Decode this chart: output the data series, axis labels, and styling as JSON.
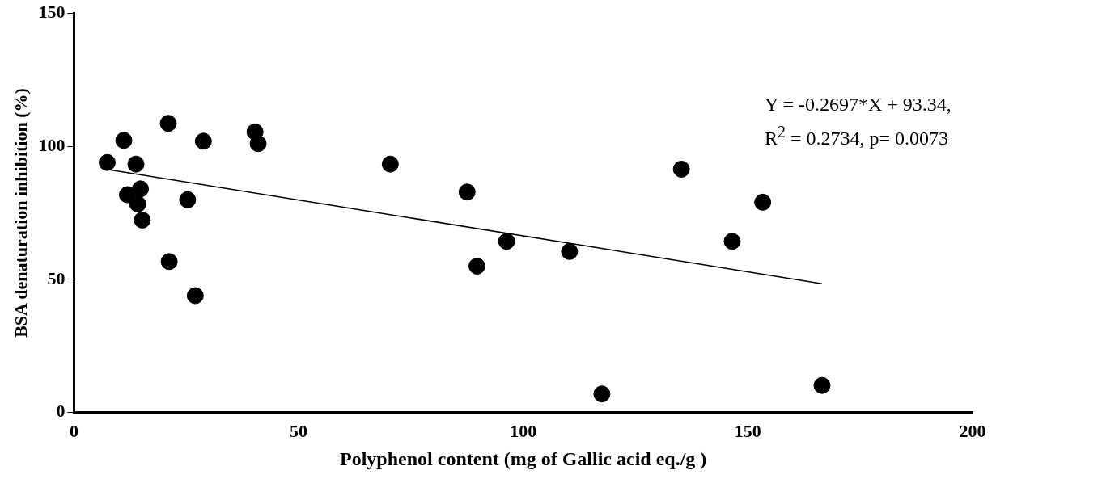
{
  "chart_data": {
    "type": "scatter",
    "xlabel": "Polyphenol content (mg of Gallic acid eq./g )",
    "ylabel": "BSA denaturation inhibition (%)",
    "xlim": [
      0,
      200
    ],
    "xticks": [
      0,
      50,
      100,
      150,
      200
    ],
    "ylim": [
      0,
      150
    ],
    "yticks": [
      0,
      50,
      100,
      150
    ],
    "grid": false,
    "legend": false,
    "marker": "circle",
    "series": [
      {
        "color": "#000000",
        "x": [
          7.4,
          11.1,
          11.9,
          13.8,
          14.2,
          14.8,
          15.2,
          21.0,
          21.2,
          25.3,
          27.0,
          28.8,
          40.3,
          41.0,
          70.4,
          87.5,
          89.7,
          96.3,
          110.3,
          117.5,
          135.2,
          146.5,
          153.3,
          166.5
        ],
        "values": [
          93.9,
          102.2,
          81.8,
          93.3,
          78.3,
          84.0,
          72.3,
          108.6,
          56.7,
          79.9,
          43.9,
          101.9,
          105.4,
          101.0,
          93.3,
          82.8,
          55.0,
          64.3,
          60.5,
          7.0,
          91.4,
          64.3,
          79.0,
          10.2
        ]
      },
      {
        "type": "line",
        "color": "#000000",
        "x": [
          7.4,
          166.5
        ],
        "values": [
          91.3,
          48.4
        ],
        "marker": "none"
      }
    ],
    "annotations": [
      "Y = -0.2697*X + 93.34,\nR$^{2}$ = 0.2734, p= 0.0073"
    ]
  }
}
